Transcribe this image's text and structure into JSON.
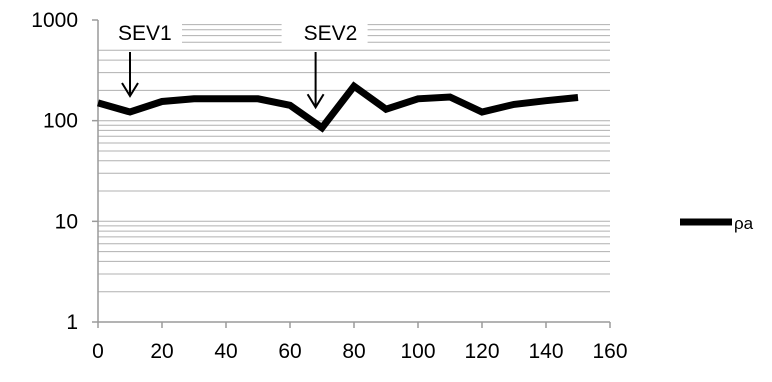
{
  "chart_data": {
    "type": "line",
    "title": "",
    "xlabel": "",
    "ylabel": "",
    "xlim": [
      0,
      160
    ],
    "ylim": [
      1,
      1000
    ],
    "y_scale": "log",
    "grid": "horizontal minor gridlines",
    "x_ticks": [
      "0",
      "20",
      "40",
      "60",
      "80",
      "100",
      "120",
      "140",
      "160"
    ],
    "y_ticks": [
      "1",
      "10",
      "100",
      "1000"
    ],
    "legend_placement": "right",
    "series": [
      {
        "name": "ρa",
        "color": "#000000",
        "x": [
          0,
          10,
          20,
          30,
          40,
          50,
          60,
          70,
          80,
          90,
          100,
          110,
          120,
          130,
          140,
          150
        ],
        "y": [
          150,
          122,
          155,
          165,
          165,
          165,
          142,
          85,
          220,
          130,
          165,
          172,
          122,
          145,
          158,
          170
        ]
      }
    ],
    "annotations": [
      {
        "text": "SEV1",
        "x": 10
      },
      {
        "text": "SEV2",
        "x": 68
      }
    ]
  }
}
